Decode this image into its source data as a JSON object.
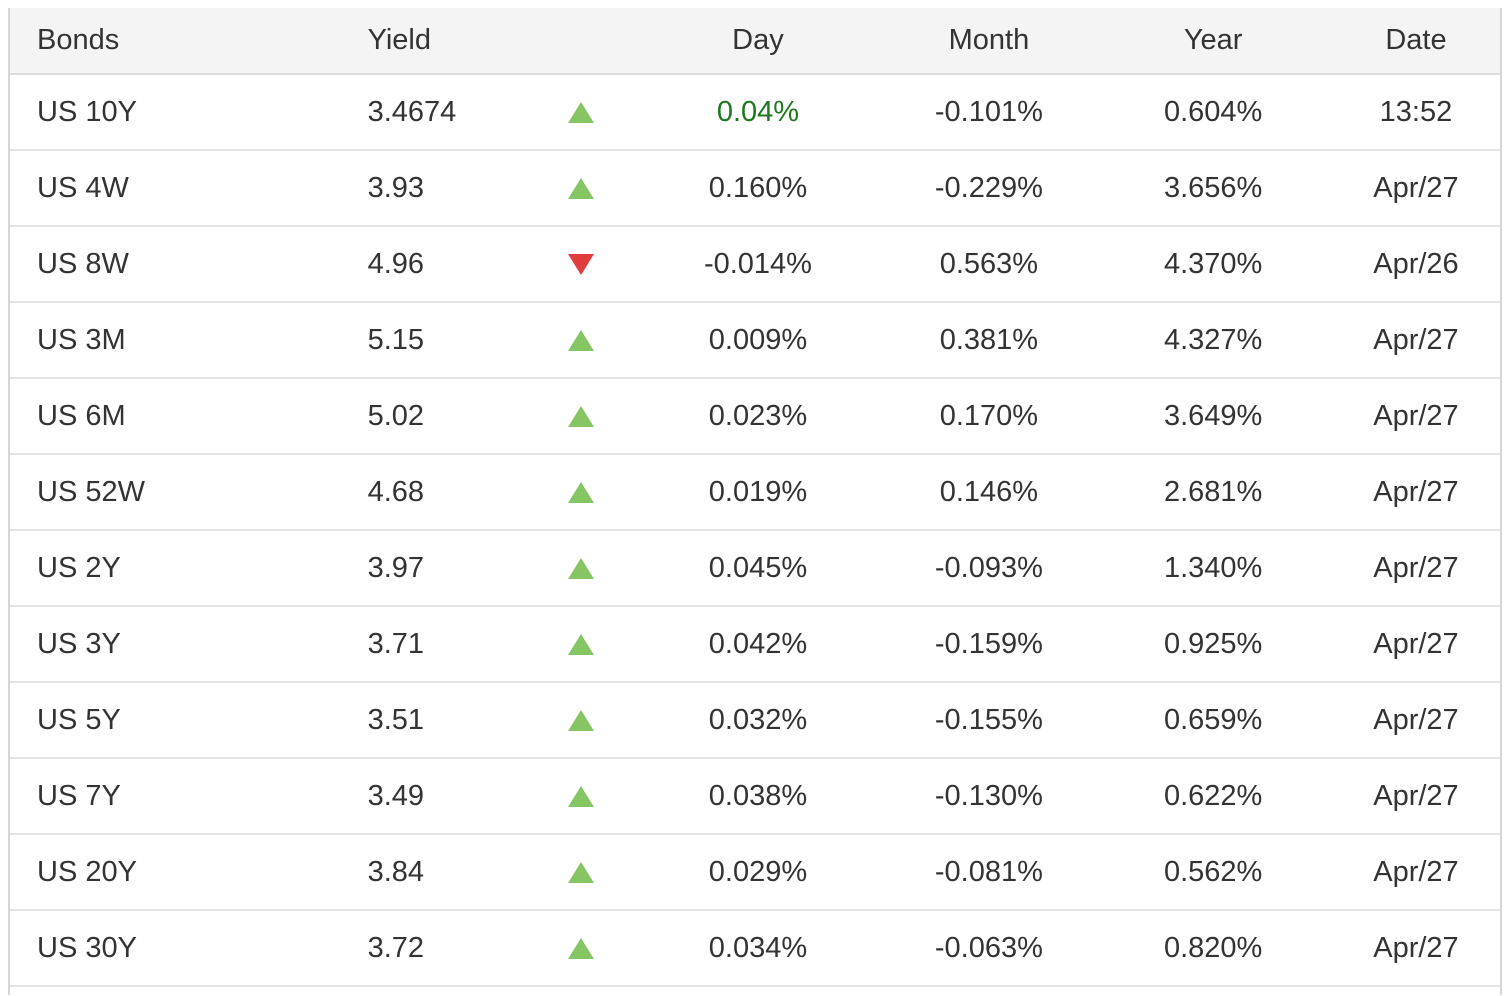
{
  "colors": {
    "up_green": "#87c564",
    "down_red": "#e03c3c",
    "day_positive_text": "#1e781e",
    "header_bg": "#f4f4f4",
    "text": "#333333"
  },
  "table": {
    "headers": {
      "bonds": "Bonds",
      "yield": "Yield",
      "day": "Day",
      "month": "Month",
      "year": "Year",
      "date": "Date"
    },
    "rows": [
      {
        "bond": "US 10Y",
        "yield": "3.4674",
        "direction": "up",
        "day": "0.04%",
        "day_highlight": true,
        "month": "-0.101%",
        "year": "0.604%",
        "date": "13:52"
      },
      {
        "bond": "US 4W",
        "yield": "3.93",
        "direction": "up",
        "day": "0.160%",
        "day_highlight": false,
        "month": "-0.229%",
        "year": "3.656%",
        "date": "Apr/27"
      },
      {
        "bond": "US 8W",
        "yield": "4.96",
        "direction": "down",
        "day": "-0.014%",
        "day_highlight": false,
        "month": "0.563%",
        "year": "4.370%",
        "date": "Apr/26"
      },
      {
        "bond": "US 3M",
        "yield": "5.15",
        "direction": "up",
        "day": "0.009%",
        "day_highlight": false,
        "month": "0.381%",
        "year": "4.327%",
        "date": "Apr/27"
      },
      {
        "bond": "US 6M",
        "yield": "5.02",
        "direction": "up",
        "day": "0.023%",
        "day_highlight": false,
        "month": "0.170%",
        "year": "3.649%",
        "date": "Apr/27"
      },
      {
        "bond": "US 52W",
        "yield": "4.68",
        "direction": "up",
        "day": "0.019%",
        "day_highlight": false,
        "month": "0.146%",
        "year": "2.681%",
        "date": "Apr/27"
      },
      {
        "bond": "US 2Y",
        "yield": "3.97",
        "direction": "up",
        "day": "0.045%",
        "day_highlight": false,
        "month": "-0.093%",
        "year": "1.340%",
        "date": "Apr/27"
      },
      {
        "bond": "US 3Y",
        "yield": "3.71",
        "direction": "up",
        "day": "0.042%",
        "day_highlight": false,
        "month": "-0.159%",
        "year": "0.925%",
        "date": "Apr/27"
      },
      {
        "bond": "US 5Y",
        "yield": "3.51",
        "direction": "up",
        "day": "0.032%",
        "day_highlight": false,
        "month": "-0.155%",
        "year": "0.659%",
        "date": "Apr/27"
      },
      {
        "bond": "US 7Y",
        "yield": "3.49",
        "direction": "up",
        "day": "0.038%",
        "day_highlight": false,
        "month": "-0.130%",
        "year": "0.622%",
        "date": "Apr/27"
      },
      {
        "bond": "US 20Y",
        "yield": "3.84",
        "direction": "up",
        "day": "0.029%",
        "day_highlight": false,
        "month": "-0.081%",
        "year": "0.562%",
        "date": "Apr/27"
      },
      {
        "bond": "US 30Y",
        "yield": "3.72",
        "direction": "up",
        "day": "0.034%",
        "day_highlight": false,
        "month": "-0.063%",
        "year": "0.820%",
        "date": "Apr/27"
      }
    ]
  }
}
